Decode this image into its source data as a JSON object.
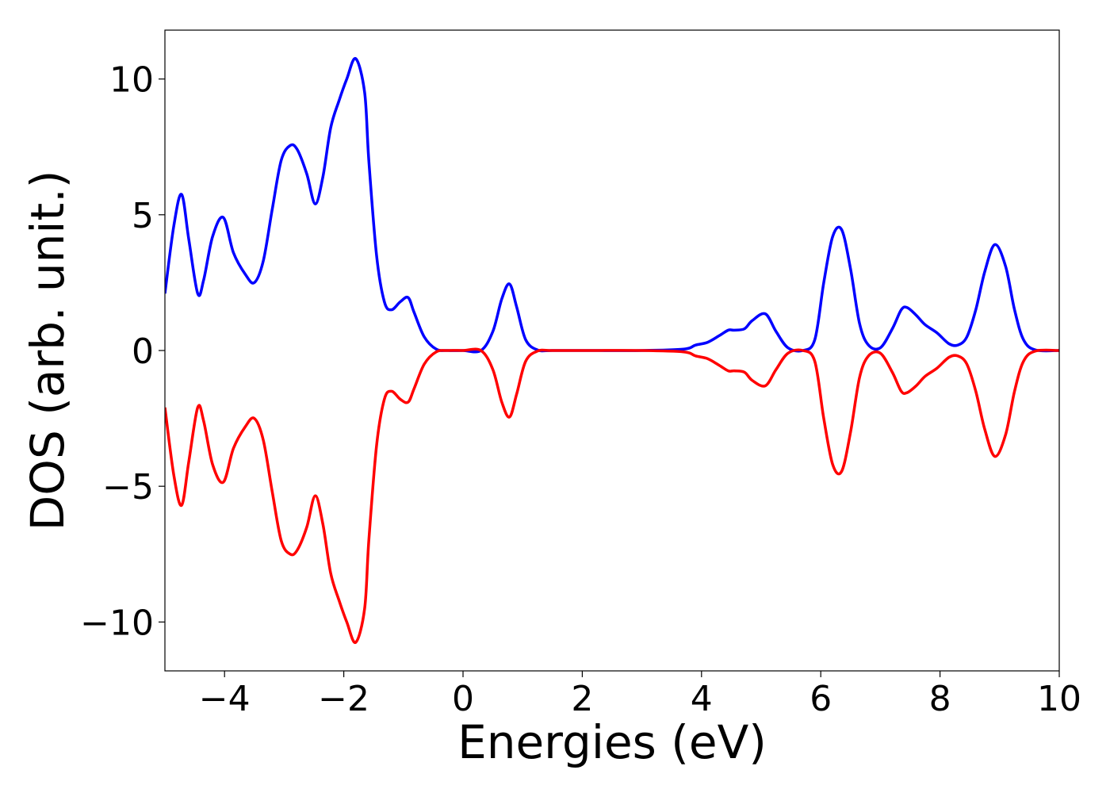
{
  "chart_data": {
    "type": "line",
    "title": "",
    "xlabel": "Energies (eV)",
    "ylabel": "DOS (arb. unit.)",
    "xlim": [
      -5,
      10
    ],
    "ylim": [
      -11.8,
      11.8
    ],
    "xticks": [
      -4,
      -2,
      0,
      2,
      4,
      6,
      8,
      10
    ],
    "xtick_labels": [
      "−4",
      "−2",
      "0",
      "2",
      "4",
      "6",
      "8",
      "10"
    ],
    "yticks": [
      -10,
      -5,
      0,
      5,
      10
    ],
    "ytick_labels": [
      "−10",
      "−5",
      "0",
      "5",
      "10"
    ],
    "grid": false,
    "legend": false,
    "series": [
      {
        "color": "#0000ff",
        "x": [
          -5.0,
          -4.85,
          -4.72,
          -4.6,
          -4.45,
          -4.35,
          -4.2,
          -4.02,
          -3.85,
          -3.65,
          -3.5,
          -3.35,
          -3.2,
          -3.05,
          -2.9,
          -2.78,
          -2.62,
          -2.48,
          -2.35,
          -2.22,
          -2.08,
          -1.95,
          -1.8,
          -1.65,
          -1.58,
          -1.45,
          -1.32,
          -1.2,
          -1.05,
          -0.92,
          -0.82,
          -0.65,
          -0.45,
          -0.25,
          0.0,
          0.3,
          0.5,
          0.65,
          0.78,
          0.9,
          1.05,
          1.25,
          1.5,
          2.0,
          3.0,
          3.7,
          3.9,
          4.1,
          4.3,
          4.45,
          4.55,
          4.72,
          4.85,
          5.07,
          5.25,
          5.45,
          5.7,
          5.9,
          6.05,
          6.2,
          6.35,
          6.5,
          6.65,
          6.8,
          7.0,
          7.2,
          7.35,
          7.45,
          7.6,
          7.75,
          7.95,
          8.15,
          8.3,
          8.45,
          8.6,
          8.75,
          8.92,
          9.1,
          9.25,
          9.4,
          9.6,
          10.0
        ],
        "y": [
          2.1,
          4.6,
          5.75,
          4.1,
          2.1,
          2.6,
          4.2,
          4.9,
          3.6,
          2.8,
          2.5,
          3.3,
          5.2,
          7.0,
          7.55,
          7.4,
          6.5,
          5.4,
          6.4,
          8.2,
          9.2,
          10.0,
          10.75,
          9.5,
          7.0,
          3.5,
          1.8,
          1.5,
          1.8,
          1.95,
          1.4,
          0.5,
          0.05,
          0.0,
          0.0,
          0.0,
          0.7,
          1.9,
          2.45,
          1.6,
          0.4,
          0.02,
          0.0,
          0.0,
          0.0,
          0.05,
          0.2,
          0.3,
          0.55,
          0.75,
          0.75,
          0.8,
          1.1,
          1.35,
          0.7,
          0.1,
          0.0,
          0.4,
          2.5,
          4.2,
          4.45,
          3.0,
          1.0,
          0.2,
          0.1,
          0.8,
          1.5,
          1.58,
          1.3,
          0.95,
          0.65,
          0.25,
          0.2,
          0.5,
          1.5,
          2.9,
          3.9,
          3.1,
          1.5,
          0.4,
          0.02,
          0.0
        ]
      },
      {
        "color": "#ff0000",
        "x": [
          -5.0,
          -4.85,
          -4.72,
          -4.6,
          -4.45,
          -4.35,
          -4.2,
          -4.02,
          -3.85,
          -3.65,
          -3.5,
          -3.35,
          -3.2,
          -3.05,
          -2.9,
          -2.78,
          -2.62,
          -2.48,
          -2.35,
          -2.22,
          -2.08,
          -1.95,
          -1.8,
          -1.65,
          -1.58,
          -1.45,
          -1.32,
          -1.2,
          -1.05,
          -0.92,
          -0.82,
          -0.65,
          -0.45,
          -0.25,
          0.0,
          0.3,
          0.5,
          0.65,
          0.78,
          0.9,
          1.05,
          1.25,
          1.5,
          2.0,
          3.0,
          3.7,
          3.9,
          4.1,
          4.3,
          4.45,
          4.55,
          4.72,
          4.85,
          5.07,
          5.25,
          5.45,
          5.7,
          5.9,
          6.05,
          6.2,
          6.35,
          6.5,
          6.65,
          6.8,
          7.0,
          7.2,
          7.35,
          7.45,
          7.6,
          7.75,
          7.95,
          8.15,
          8.3,
          8.45,
          8.6,
          8.75,
          8.92,
          9.1,
          9.25,
          9.4,
          9.6,
          10.0
        ],
        "y": [
          -2.1,
          -4.6,
          -5.7,
          -4.1,
          -2.1,
          -2.6,
          -4.2,
          -4.85,
          -3.6,
          -2.8,
          -2.5,
          -3.3,
          -5.2,
          -7.0,
          -7.5,
          -7.35,
          -6.5,
          -5.35,
          -6.4,
          -8.2,
          -9.2,
          -10.0,
          -10.75,
          -9.5,
          -7.0,
          -3.5,
          -1.8,
          -1.5,
          -1.8,
          -1.9,
          -1.4,
          -0.5,
          -0.05,
          0.0,
          0.0,
          0.0,
          -0.7,
          -1.9,
          -2.45,
          -1.6,
          -0.4,
          -0.02,
          0.0,
          0.0,
          0.0,
          -0.05,
          -0.2,
          -0.3,
          -0.55,
          -0.75,
          -0.75,
          -0.8,
          -1.1,
          -1.3,
          -0.7,
          -0.1,
          0.0,
          -0.4,
          -2.5,
          -4.2,
          -4.45,
          -3.0,
          -1.0,
          -0.2,
          -0.1,
          -0.8,
          -1.5,
          -1.55,
          -1.3,
          -0.95,
          -0.65,
          -0.25,
          -0.2,
          -0.5,
          -1.5,
          -2.9,
          -3.9,
          -3.1,
          -1.5,
          -0.4,
          -0.02,
          0.0
        ]
      }
    ]
  }
}
